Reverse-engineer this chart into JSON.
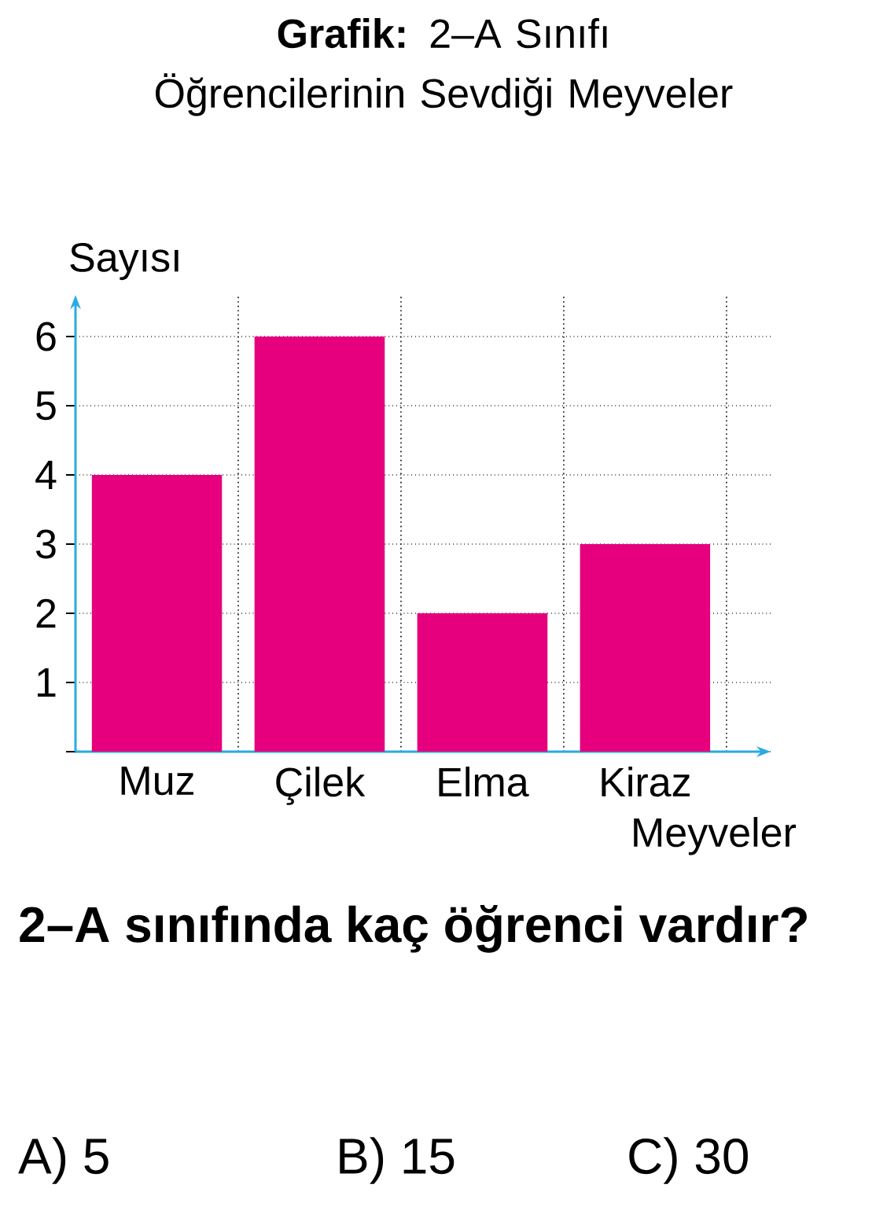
{
  "chart_data": {
    "type": "bar",
    "title": "**Grafik:** 2–A Sınıfı Öğrencilerinin Sevdiği Meyveler",
    "xlabel": "Meyveler",
    "ylabel": "Sayısı",
    "categories": [
      "Muz",
      "Çilek",
      "Elma",
      "Kiraz"
    ],
    "values": [
      4,
      6,
      2,
      3
    ],
    "color": "#e6007e",
    "ylim": [
      0,
      6.6
    ],
    "yticks": [
      {
        "value": 0,
        "label": null
      },
      1,
      2,
      3,
      4,
      5,
      6
    ],
    "grid": true,
    "annotations": [
      "2–A sınıfında kaç öğrenci vardır?",
      "A) 5",
      "B) 15",
      "C) 30"
    ]
  }
}
